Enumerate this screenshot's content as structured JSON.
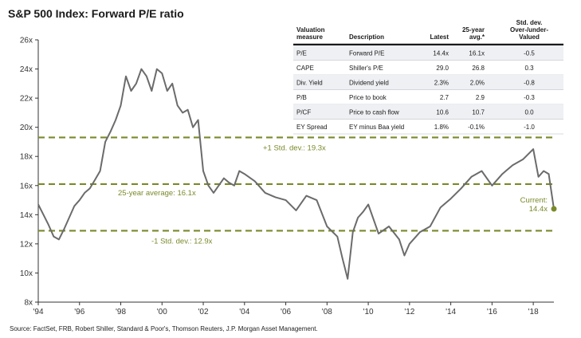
{
  "title": "S&P 500 Index: Forward P/E ratio",
  "source": "Source: FactSet, FRB, Robert Shiller, Standard & Poor's, Thomson Reuters, J.P. Morgan Asset Management.",
  "colors": {
    "line": "#6b6b6b",
    "reference": "#7a8a2a",
    "table_header": "#1a1a1a"
  },
  "chart_data": {
    "type": "line",
    "title": "S&P 500 Index: Forward P/E ratio",
    "ylim": [
      8,
      26
    ],
    "xlim": [
      1994,
      2019.0
    ],
    "yticks": [
      8,
      10,
      12,
      14,
      16,
      18,
      20,
      22,
      24,
      26
    ],
    "ytick_labels": [
      "8x",
      "10x",
      "12x",
      "14x",
      "16x",
      "18x",
      "20x",
      "22x",
      "24x",
      "26x"
    ],
    "xticks": [
      1994,
      1996,
      1998,
      2000,
      2002,
      2004,
      2006,
      2008,
      2010,
      2012,
      2014,
      2016,
      2018
    ],
    "xtick_labels": [
      "'94",
      "'96",
      "'98",
      "'00",
      "'02",
      "'04",
      "'06",
      "'08",
      "'10",
      "'12",
      "'14",
      "'16",
      "'18"
    ],
    "grid": false,
    "series": [
      {
        "x": [
          1994.0,
          1994.25,
          1994.5,
          1994.75,
          1995.0,
          1995.25,
          1995.5,
          1995.75,
          1996.0,
          1996.25,
          1996.5,
          1996.75,
          1997.0,
          1997.25,
          1997.5,
          1997.75,
          1998.0,
          1998.25,
          1998.5,
          1998.75,
          1999.0,
          1999.25,
          1999.5,
          1999.75,
          2000.0,
          2000.25,
          2000.5,
          2000.75,
          2001.0,
          2001.25,
          2001.5,
          2001.75,
          2002.0,
          2002.25,
          2002.5,
          2002.75,
          2003.0,
          2003.25,
          2003.5,
          2003.75,
          2004.0,
          2004.5,
          2005.0,
          2005.5,
          2006.0,
          2006.5,
          2007.0,
          2007.5,
          2008.0,
          2008.5,
          2008.75,
          2009.0,
          2009.25,
          2009.5,
          2009.75,
          2010.0,
          2010.5,
          2011.0,
          2011.5,
          2011.75,
          2012.0,
          2012.5,
          2013.0,
          2013.5,
          2014.0,
          2014.5,
          2015.0,
          2015.5,
          2016.0,
          2016.5,
          2017.0,
          2017.5,
          2018.0,
          2018.25,
          2018.5,
          2018.75,
          2019.0
        ],
        "y": [
          14.7,
          14.0,
          13.3,
          12.5,
          12.3,
          13.0,
          13.8,
          14.6,
          15.0,
          15.5,
          15.8,
          16.4,
          17.0,
          19.0,
          19.7,
          20.5,
          21.5,
          23.5,
          22.5,
          23.0,
          24.0,
          23.5,
          22.5,
          24.0,
          23.7,
          22.5,
          23.0,
          21.5,
          21.0,
          21.2,
          20.0,
          20.5,
          17.0,
          16.0,
          15.5,
          16.0,
          16.5,
          16.2,
          16.0,
          17.0,
          16.8,
          16.3,
          15.5,
          15.2,
          15.0,
          14.3,
          15.3,
          15.0,
          13.2,
          12.5,
          11.0,
          9.6,
          12.8,
          13.8,
          14.2,
          14.7,
          12.7,
          13.2,
          12.3,
          11.2,
          12.0,
          12.8,
          13.2,
          14.5,
          15.1,
          15.8,
          16.6,
          17.0,
          16.0,
          16.8,
          17.4,
          17.8,
          18.5,
          16.6,
          17.0,
          16.8,
          14.4
        ]
      }
    ],
    "reference_lines": [
      {
        "value": 19.3,
        "label": "+1 Std. dev.: 19.3x"
      },
      {
        "value": 16.1,
        "label": "25-year average: 16.1x"
      },
      {
        "value": 12.9,
        "label": "-1 Std. dev.: 12.9x"
      }
    ],
    "current": {
      "label": "Current:",
      "value_label": "14.4x",
      "x": 2019.0,
      "y": 14.4
    }
  },
  "table": {
    "headers": [
      "Valuation measure",
      "Description",
      "Latest",
      "25-year avg.*",
      "Std. dev. Over-/under-Valued"
    ],
    "header_lines": [
      [
        "Valuation",
        "measure"
      ],
      [
        "Description"
      ],
      [
        "Latest"
      ],
      [
        "25-year",
        "avg.*"
      ],
      [
        "Std. dev.",
        "Over-/under-",
        "Valued"
      ]
    ],
    "rows": [
      [
        "P/E",
        "Forward P/E",
        "14.4x",
        "16.1x",
        "-0.5"
      ],
      [
        "CAPE",
        "Shiller's P/E",
        "29.0",
        "26.8",
        "0.3"
      ],
      [
        "Div. Yield",
        "Dividend yield",
        "2.3%",
        "2.0%",
        "-0.8"
      ],
      [
        "P/B",
        "Price to book",
        "2.7",
        "2.9",
        "-0.3"
      ],
      [
        "P/CF",
        "Price to cash flow",
        "10.6",
        "10.7",
        "0.0"
      ],
      [
        "EY Spread",
        "EY minus Baa yield",
        "1.8%",
        "-0.1%",
        "-1.0"
      ]
    ]
  }
}
